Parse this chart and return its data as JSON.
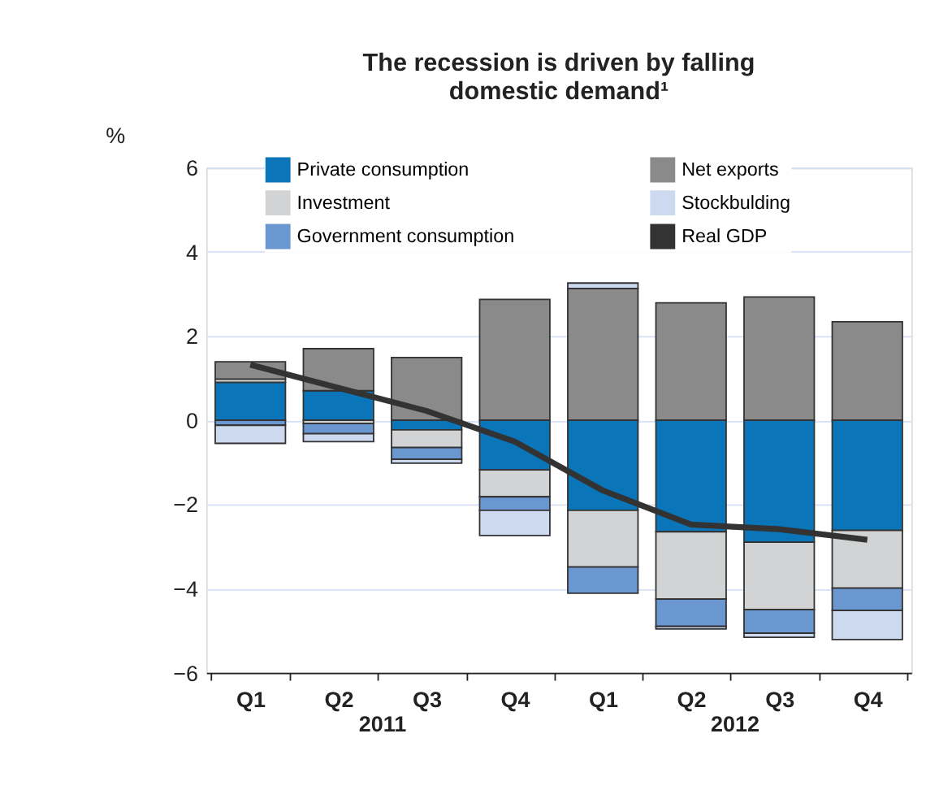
{
  "chart_data": {
    "type": "bar",
    "stacked": true,
    "title": "The recession is driven by falling domestic demand¹",
    "ylabel": "%",
    "categories": [
      "Q1",
      "Q2",
      "Q3",
      "Q4",
      "Q1",
      "Q2",
      "Q3",
      "Q4"
    ],
    "annotations": [
      "2011",
      "2012"
    ],
    "ylim": [
      -6,
      6
    ],
    "yticks": [
      -6,
      -4,
      -2,
      0,
      2,
      4,
      6
    ],
    "grid": "y",
    "legend": "top",
    "series": [
      {
        "name": "Private consumption",
        "color": "#0a75b9",
        "values": [
          0.9,
          0.7,
          -0.23,
          -1.18,
          -2.14,
          -2.65,
          -2.9,
          -2.62
        ]
      },
      {
        "name": "Investment",
        "color": "#d2d3d4",
        "values": [
          0.08,
          -0.08,
          -0.42,
          -0.64,
          -1.35,
          -1.6,
          -1.6,
          -1.37
        ]
      },
      {
        "name": "Government consumption",
        "color": "#6a97d0",
        "values": [
          -0.12,
          -0.24,
          -0.28,
          -0.32,
          -0.62,
          -0.65,
          -0.56,
          -0.53
        ]
      },
      {
        "name": "Net exports",
        "color": "#8a8a8a",
        "values": [
          0.41,
          1.0,
          1.49,
          2.87,
          3.13,
          2.79,
          2.93,
          2.34
        ]
      },
      {
        "name": "Stockbulding",
        "color": "#cdd9ef",
        "values": [
          -0.43,
          -0.19,
          -0.09,
          -0.6,
          0.13,
          -0.06,
          -0.1,
          -0.69
        ]
      },
      {
        "name": "Real GDP",
        "type": "line",
        "color": "#333333",
        "values": [
          1.32,
          0.77,
          0.22,
          -0.51,
          -1.67,
          -2.48,
          -2.59,
          -2.84
        ]
      }
    ]
  }
}
